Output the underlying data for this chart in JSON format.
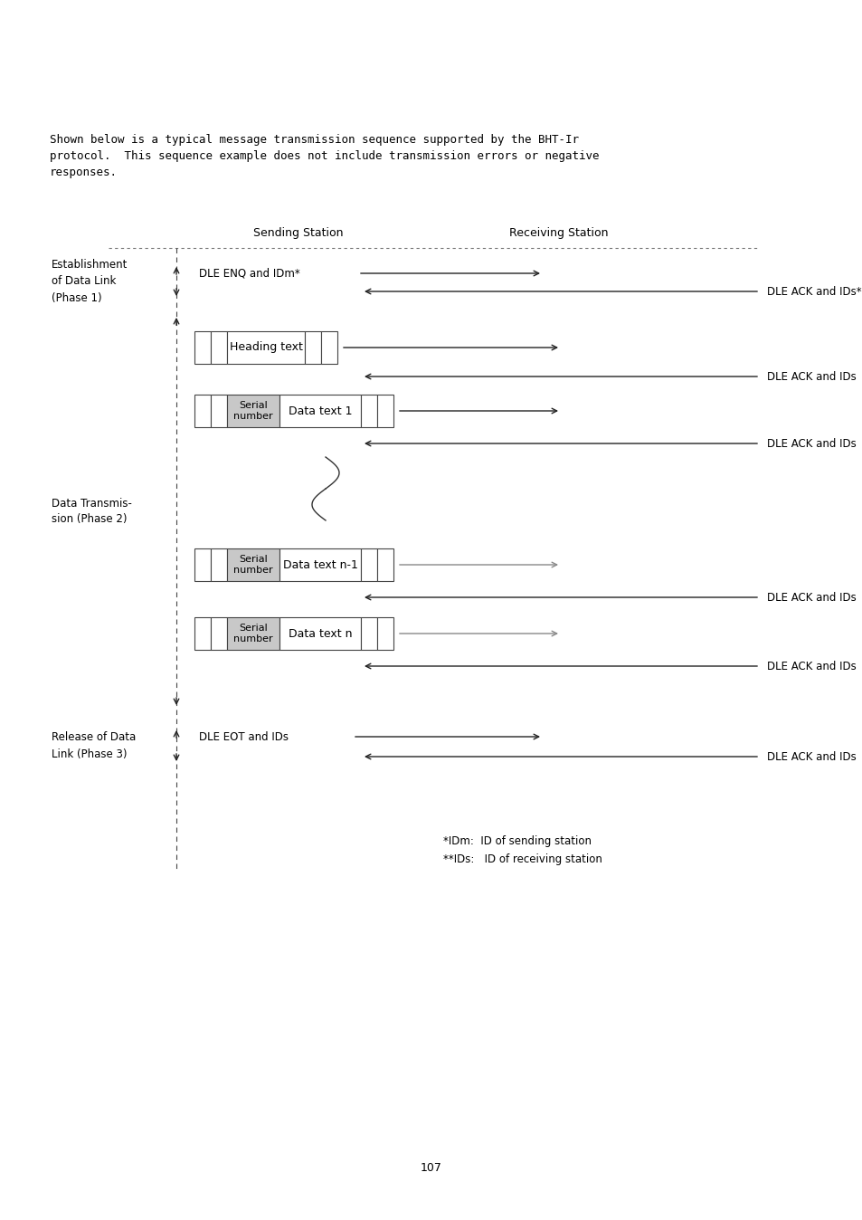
{
  "bg_color": "#ffffff",
  "text_color": "#000000",
  "page_number": "107",
  "intro_text_line1": "Shown below is a typical message transmission sequence supported by the BHT-Ir",
  "intro_text_line2": "protocol.  This sequence example does not include transmission errors or negative",
  "intro_text_line3": "responses.",
  "sending_station_label": "Sending Station",
  "receiving_station_label": "Receiving Station",
  "phase1_label": "Establishment\nof Data Link\n(Phase 1)",
  "phase2_label": "Data Transmis-\nsion (Phase 2)",
  "phase3_label": "Release of Data\nLink (Phase 3)",
  "note1": "*IDm:  ID of sending station",
  "note2": "**IDs:   ID of receiving station",
  "font_size": 9.0
}
